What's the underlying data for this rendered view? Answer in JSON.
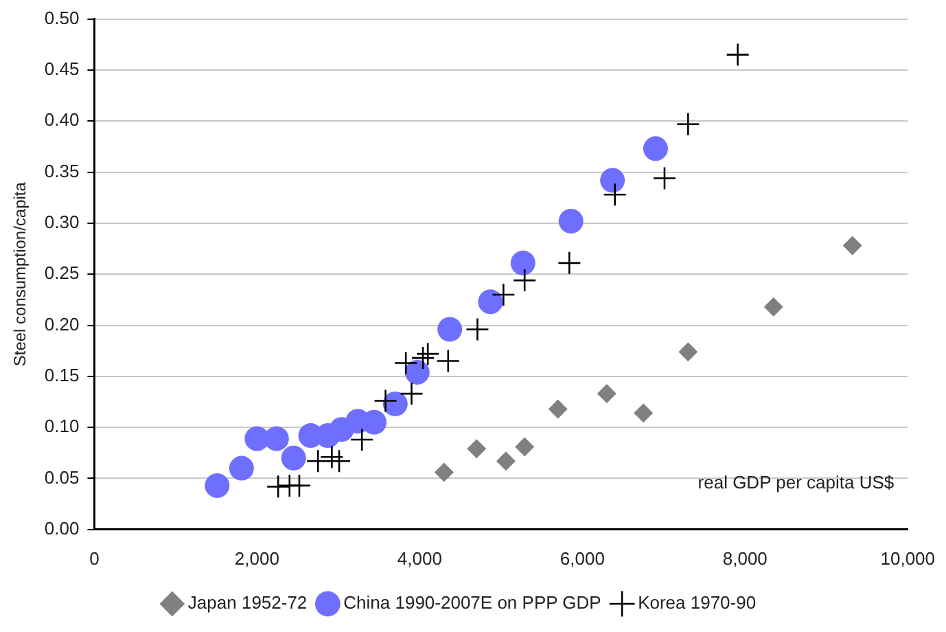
{
  "chart_data": {
    "type": "scatter",
    "xlabel": "real GDP per capita US$",
    "ylabel": "Steel consumption/capita",
    "xlim": [
      0,
      10000
    ],
    "xticks": [
      0,
      {
        "value": 2000,
        "label": "2,000"
      },
      {
        "value": 4000,
        "label": "4,000"
      },
      {
        "value": 6000,
        "label": "6,000"
      },
      {
        "value": 8000,
        "label": "8,000"
      },
      {
        "value": 10000,
        "label": "10,000"
      }
    ],
    "ylim": [
      0,
      0.5
    ],
    "yticks": [
      {
        "value": 0,
        "label": "0.00"
      },
      0.05,
      {
        "value": 0.1,
        "label": "0.10"
      },
      0.15,
      {
        "value": 0.2,
        "label": "0.20"
      },
      0.25,
      {
        "value": 0.3,
        "label": "0.30"
      },
      0.35,
      {
        "value": 0.4,
        "label": "0.40"
      },
      0.45,
      {
        "value": 0.5,
        "label": "0.50"
      }
    ],
    "grid": "y",
    "legend": "bottom",
    "series": [
      {
        "name": "Japan 1952-72",
        "color": "#808080",
        "marker": "diamond",
        "x": [
          4300,
          4700,
          5060,
          5290,
          5700,
          6300,
          6750,
          7300,
          8350,
          9320
        ],
        "values": [
          0.056,
          0.079,
          0.067,
          0.081,
          0.118,
          0.133,
          0.114,
          0.174,
          0.218,
          0.278
        ]
      },
      {
        "name": "China 1990-2007E on PPP GDP",
        "color": "#6f6fff",
        "marker": "circle",
        "x": [
          1510,
          1810,
          2000,
          2240,
          2450,
          2660,
          2870,
          3040,
          3240,
          3440,
          3700,
          3970,
          4370,
          4870,
          5270,
          5860,
          6370,
          6900
        ],
        "values": [
          0.043,
          0.06,
          0.089,
          0.089,
          0.07,
          0.092,
          0.092,
          0.098,
          0.106,
          0.105,
          0.123,
          0.154,
          0.196,
          0.223,
          0.261,
          0.302,
          0.342,
          0.373
        ]
      },
      {
        "name": "Korea 1970-90",
        "color": "#000000",
        "marker": "cross",
        "x": [
          2260,
          2400,
          2520,
          2750,
          2920,
          3010,
          3290,
          3580,
          3900,
          3830,
          4040,
          4100,
          4350,
          4710,
          5030,
          5290,
          5840,
          6400,
          7010,
          7300,
          7910
        ],
        "values": [
          0.042,
          0.043,
          0.043,
          0.067,
          0.071,
          0.067,
          0.088,
          0.126,
          0.133,
          0.163,
          0.168,
          0.172,
          0.165,
          0.196,
          0.23,
          0.244,
          0.261,
          0.328,
          0.344,
          0.397,
          0.465
        ]
      }
    ]
  }
}
